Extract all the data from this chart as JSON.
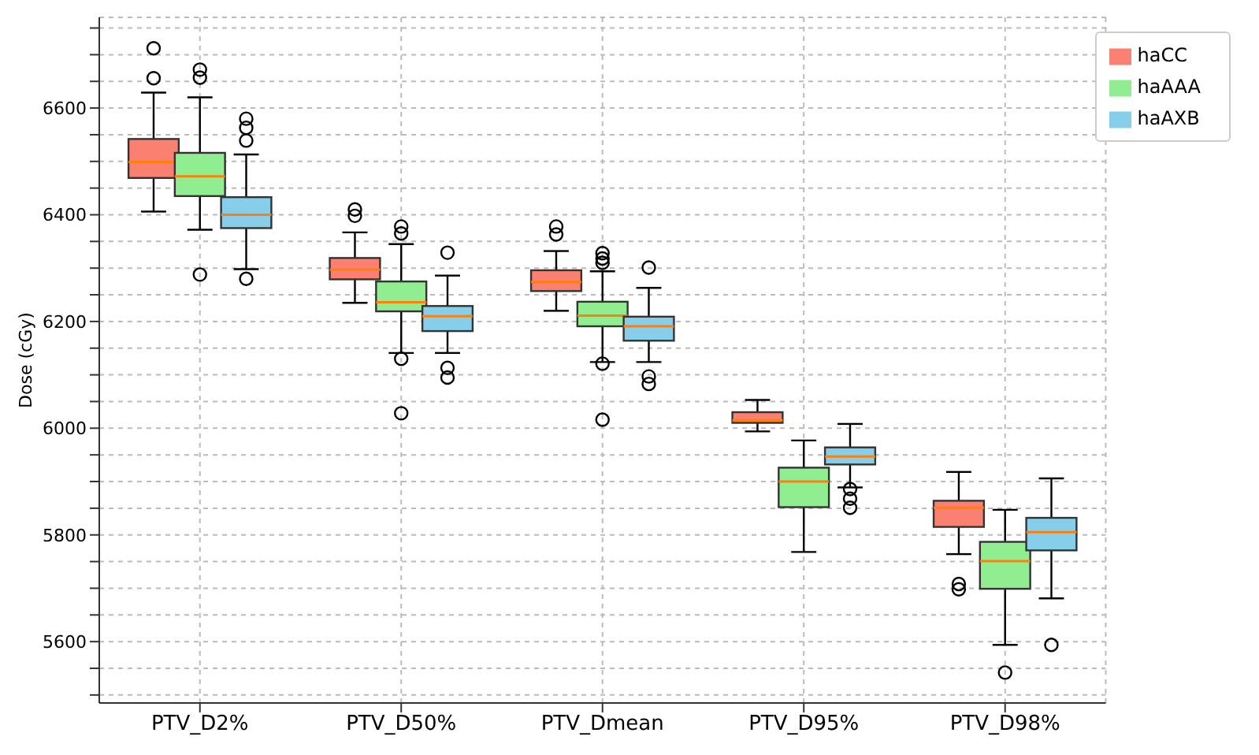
{
  "chart_data": {
    "type": "box",
    "ylabel": "Dose (cGy)",
    "categories": [
      "PTV_D2%",
      "PTV_D50%",
      "PTV_Dmean",
      "PTV_D95%",
      "PTV_D98%"
    ],
    "ylim": [
      5485,
      6770
    ],
    "yticks": [
      {
        "value": 5500,
        "label": null
      },
      {
        "value": 5550,
        "label": null
      },
      5600,
      {
        "value": 5650,
        "label": null
      },
      {
        "value": 5700,
        "label": null
      },
      {
        "value": 5750,
        "label": null
      },
      5800,
      {
        "value": 5850,
        "label": null
      },
      {
        "value": 5900,
        "label": null
      },
      {
        "value": 5950,
        "label": null
      },
      6000,
      {
        "value": 6050,
        "label": null
      },
      {
        "value": 6100,
        "label": null
      },
      {
        "value": 6150,
        "label": null
      },
      6200,
      {
        "value": 6250,
        "label": null
      },
      {
        "value": 6300,
        "label": null
      },
      {
        "value": 6350,
        "label": null
      },
      6400,
      {
        "value": 6450,
        "label": null
      },
      {
        "value": 6500,
        "label": null
      },
      {
        "value": 6550,
        "label": null
      },
      6600,
      {
        "value": 6650,
        "label": null
      },
      {
        "value": 6700,
        "label": null
      },
      {
        "value": 6750,
        "label": null
      }
    ],
    "grid": true,
    "legend": "top right",
    "series": [
      {
        "name": "haCC",
        "color": "#fa8072",
        "boxes": [
          {
            "low": 6406,
            "q1": 6469,
            "median": 6499,
            "q3": 6542,
            "high": 6629,
            "outliers": [
              6712,
              6656
            ]
          },
          {
            "low": 6235,
            "q1": 6279,
            "median": 6297,
            "q3": 6319,
            "high": 6367,
            "outliers": [
              6410,
              6398
            ]
          },
          {
            "low": 6220,
            "q1": 6257,
            "median": 6274,
            "q3": 6296,
            "high": 6332,
            "outliers": [
              6378,
              6363
            ]
          },
          {
            "low": 5994,
            "q1": 6010,
            "median": 6015,
            "q3": 6030,
            "high": 6053
          },
          {
            "low": 5764,
            "q1": 5815,
            "median": 5851,
            "q3": 5864,
            "high": 5918,
            "outliers": [
              5708,
              5698
            ]
          }
        ]
      },
      {
        "name": "haAAA",
        "color": "#90ee90",
        "boxes": [
          {
            "low": 6372,
            "q1": 6435,
            "median": 6472,
            "q3": 6516,
            "high": 6620,
            "outliers": [
              6672,
              6657,
              6288
            ]
          },
          {
            "low": 6141,
            "q1": 6219,
            "median": 6236,
            "q3": 6275,
            "high": 6345,
            "outliers": [
              6378,
              6365,
              6130,
              6028
            ]
          },
          {
            "low": 6124,
            "q1": 6191,
            "median": 6211,
            "q3": 6237,
            "high": 6294,
            "outliers": [
              6328,
              6318,
              6310,
              6121,
              6016
            ]
          },
          {
            "low": 5768,
            "q1": 5852,
            "median": 5900,
            "q3": 5926,
            "high": 5977
          },
          {
            "low": 5594,
            "q1": 5699,
            "median": 5751,
            "q3": 5787,
            "high": 5847,
            "outliers": [
              5542
            ]
          }
        ]
      },
      {
        "name": "haAXB",
        "color": "#87ceeb",
        "boxes": [
          {
            "low": 6298,
            "q1": 6375,
            "median": 6400,
            "q3": 6433,
            "high": 6513,
            "outliers": [
              6580,
              6563,
              6539,
              6280
            ]
          },
          {
            "low": 6141,
            "q1": 6182,
            "median": 6210,
            "q3": 6229,
            "high": 6286,
            "outliers": [
              6329,
              6113,
              6095
            ]
          },
          {
            "low": 6124,
            "q1": 6164,
            "median": 6191,
            "q3": 6209,
            "high": 6263,
            "outliers": [
              6301,
              6097,
              6083
            ]
          },
          {
            "low": 5889,
            "q1": 5932,
            "median": 5947,
            "q3": 5964,
            "high": 6008,
            "outliers": [
              5886,
              5868,
              5851
            ]
          },
          {
            "low": 5681,
            "q1": 5771,
            "median": 5805,
            "q3": 5832,
            "high": 5906,
            "outliers": [
              5594
            ]
          }
        ]
      }
    ]
  }
}
